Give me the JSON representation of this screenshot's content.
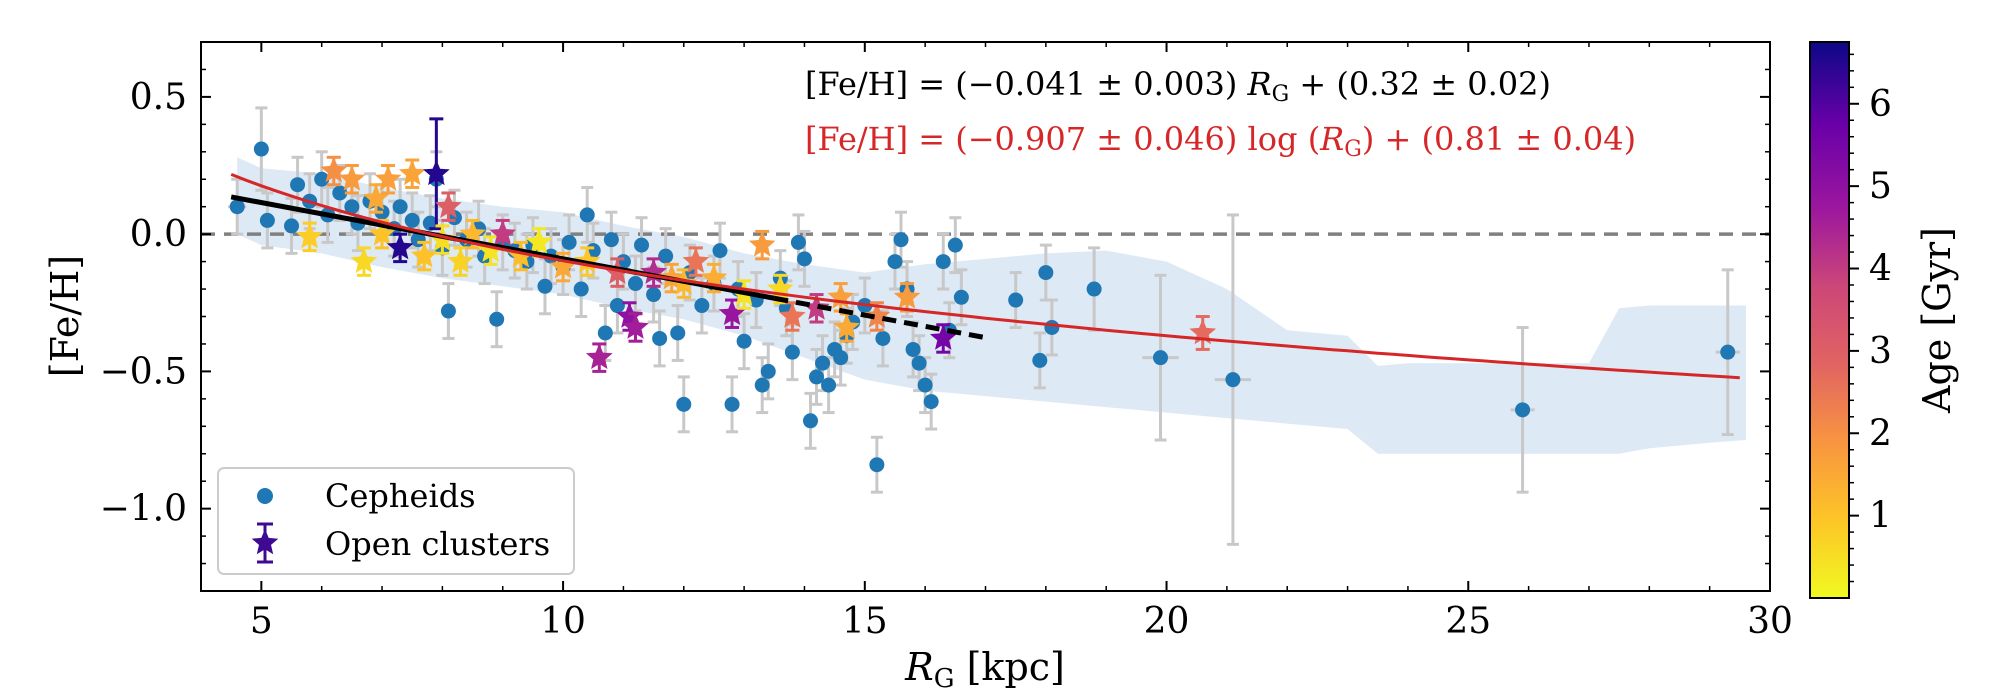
{
  "chart_data": {
    "type": "scatter",
    "xlabel": {
      "main": "R",
      "sub": "G",
      "unit": "[kpc]"
    },
    "ylabel": "[Fe/H]",
    "xlim": [
      4,
      30
    ],
    "ylim": [
      -1.3,
      0.7
    ],
    "xticks": [
      5,
      10,
      15,
      20,
      25,
      30
    ],
    "yticks": [
      0.5,
      0.0,
      -0.5,
      -1.0
    ],
    "xtick_labels": [
      "5",
      "10",
      "15",
      "20",
      "25",
      "30"
    ],
    "ytick_labels": [
      "0.5",
      "0.0",
      "−0.5",
      "−1.0"
    ],
    "reference_line": {
      "y": 0.0,
      "style": "dashed",
      "color": "#808080"
    },
    "colorbar": {
      "label": "Age [Gyr]",
      "range": [
        0,
        6.75
      ],
      "ticks": [
        1,
        2,
        3,
        4,
        5,
        6
      ],
      "tick_labels": [
        "1",
        "2",
        "3",
        "4",
        "5",
        "6"
      ],
      "colormap": "plasma_r"
    },
    "fits": [
      {
        "name": "linear",
        "equation": {
          "pre": "[Fe/H] = (−0.041 ± 0.003) ",
          "var": "R",
          "sub": "G",
          "post": " + (0.32 ± 0.02)"
        },
        "slope": -0.041,
        "intercept": 0.32,
        "x_solid": [
          4.5,
          13.5
        ],
        "x_dashed": [
          13.5,
          17.0
        ],
        "color": "#000000"
      },
      {
        "name": "log",
        "equation": {
          "pre": "[Fe/H] = (−0.907 ± 0.046) log (",
          "var": "R",
          "sub": "G",
          "post": ") + (0.81 ± 0.04)"
        },
        "a": -0.907,
        "b": 0.81,
        "x_range": [
          4.5,
          29.5
        ],
        "color": "#d62728"
      }
    ],
    "uncertainty_band": {
      "color": "#c6dbef",
      "x": [
        4.6,
        5,
        6,
        7,
        8,
        9,
        10,
        11,
        12,
        13,
        14,
        15,
        16,
        17,
        18,
        19,
        20,
        21,
        22,
        23,
        23.5,
        24,
        25,
        26,
        27,
        27.5,
        28,
        29,
        29.6
      ],
      "upper": [
        0.28,
        0.24,
        0.22,
        0.17,
        0.13,
        0.1,
        0.08,
        0.03,
        -0.01,
        -0.07,
        -0.11,
        -0.14,
        -0.11,
        -0.09,
        -0.07,
        -0.06,
        -0.1,
        -0.2,
        -0.35,
        -0.37,
        -0.48,
        -0.47,
        -0.47,
        -0.47,
        -0.47,
        -0.27,
        -0.26,
        -0.26,
        -0.26
      ],
      "lower": [
        0.0,
        -0.04,
        -0.07,
        -0.12,
        -0.16,
        -0.19,
        -0.22,
        -0.27,
        -0.31,
        -0.37,
        -0.45,
        -0.53,
        -0.57,
        -0.59,
        -0.61,
        -0.63,
        -0.65,
        -0.67,
        -0.69,
        -0.71,
        -0.8,
        -0.8,
        -0.8,
        -0.8,
        -0.8,
        -0.8,
        -0.78,
        -0.76,
        -0.75
      ]
    },
    "series": [
      {
        "name": "Cepheids",
        "marker": "circle",
        "color": "#1f77b4",
        "points": [
          [
            5.0,
            0.31,
            0.15,
            0.1
          ],
          [
            4.6,
            0.1,
            0.1,
            0.15
          ],
          [
            5.1,
            0.05,
            0.1,
            0.1
          ],
          [
            5.5,
            0.03,
            0.1,
            0.1
          ],
          [
            5.6,
            0.18,
            0.1,
            0.1
          ],
          [
            5.8,
            0.12,
            0.1,
            0.1
          ],
          [
            6.0,
            0.2,
            0.1,
            0.1
          ],
          [
            6.1,
            0.07,
            0.1,
            0.1
          ],
          [
            6.3,
            0.15,
            0.1,
            0.1
          ],
          [
            6.5,
            0.1,
            0.1,
            0.1
          ],
          [
            6.6,
            0.04,
            0.1,
            0.1
          ],
          [
            6.8,
            0.12,
            0.1,
            0.1
          ],
          [
            7.0,
            0.08,
            0.1,
            0.1
          ],
          [
            7.2,
            0.02,
            0.1,
            0.1
          ],
          [
            7.3,
            0.1,
            0.1,
            0.1
          ],
          [
            7.5,
            0.05,
            0.1,
            0.1
          ],
          [
            7.6,
            -0.02,
            0.1,
            0.1
          ],
          [
            7.8,
            0.04,
            0.1,
            0.1
          ],
          [
            7.9,
            0.2,
            0.1,
            0.1
          ],
          [
            8.0,
            -0.05,
            0.1,
            0.1
          ],
          [
            8.1,
            -0.28,
            0.1,
            0.1
          ],
          [
            8.2,
            0.06,
            0.1,
            0.1
          ],
          [
            8.4,
            -0.02,
            0.1,
            0.1
          ],
          [
            8.6,
            0.02,
            0.1,
            0.1
          ],
          [
            8.7,
            -0.08,
            0.1,
            0.1
          ],
          [
            8.9,
            -0.31,
            0.1,
            0.1
          ],
          [
            9.0,
            -0.03,
            0.1,
            0.1
          ],
          [
            9.2,
            -0.06,
            0.1,
            0.1
          ],
          [
            9.4,
            -0.1,
            0.1,
            0.1
          ],
          [
            9.5,
            -0.04,
            0.1,
            0.1
          ],
          [
            9.7,
            -0.19,
            0.1,
            0.1
          ],
          [
            9.8,
            -0.08,
            0.1,
            0.1
          ],
          [
            10.0,
            -0.12,
            0.1,
            0.1
          ],
          [
            10.1,
            -0.03,
            0.1,
            0.1
          ],
          [
            10.3,
            -0.2,
            0.1,
            0.1
          ],
          [
            10.4,
            0.07,
            0.1,
            0.1
          ],
          [
            10.5,
            -0.06,
            0.1,
            0.1
          ],
          [
            10.7,
            -0.36,
            0.1,
            0.1
          ],
          [
            10.8,
            -0.02,
            0.1,
            0.1
          ],
          [
            10.9,
            -0.26,
            0.1,
            0.1
          ],
          [
            11.0,
            -0.1,
            0.1,
            0.1
          ],
          [
            11.2,
            -0.18,
            0.1,
            0.1
          ],
          [
            11.3,
            -0.04,
            0.1,
            0.1
          ],
          [
            11.5,
            -0.22,
            0.1,
            0.1
          ],
          [
            11.6,
            -0.38,
            0.1,
            0.1
          ],
          [
            11.7,
            -0.08,
            0.1,
            0.1
          ],
          [
            11.9,
            -0.36,
            0.1,
            0.1
          ],
          [
            12.0,
            -0.62,
            0.1,
            0.1
          ],
          [
            12.1,
            -0.14,
            0.1,
            0.1
          ],
          [
            12.3,
            -0.26,
            0.1,
            0.1
          ],
          [
            12.5,
            -0.18,
            0.1,
            0.1
          ],
          [
            12.6,
            -0.06,
            0.1,
            0.1
          ],
          [
            12.8,
            -0.62,
            0.1,
            0.1
          ],
          [
            12.9,
            -0.2,
            0.1,
            0.1
          ],
          [
            13.0,
            -0.39,
            0.1,
            0.1
          ],
          [
            13.2,
            -0.24,
            0.1,
            0.1
          ],
          [
            13.3,
            -0.55,
            0.1,
            0.1
          ],
          [
            13.4,
            -0.5,
            0.1,
            0.1
          ],
          [
            13.6,
            -0.16,
            0.1,
            0.1
          ],
          [
            13.7,
            -0.27,
            0.1,
            0.1
          ],
          [
            13.8,
            -0.43,
            0.1,
            0.1
          ],
          [
            13.9,
            -0.03,
            0.1,
            0.1
          ],
          [
            14.0,
            -0.09,
            0.1,
            0.1
          ],
          [
            14.1,
            -0.68,
            0.1,
            0.1
          ],
          [
            14.2,
            -0.52,
            0.1,
            0.1
          ],
          [
            14.3,
            -0.47,
            0.1,
            0.1
          ],
          [
            14.4,
            -0.55,
            0.1,
            0.1
          ],
          [
            14.5,
            -0.42,
            0.1,
            0.1
          ],
          [
            14.6,
            -0.45,
            0.1,
            0.1
          ],
          [
            14.7,
            -0.37,
            0.1,
            0.1
          ],
          [
            14.8,
            -0.32,
            0.1,
            0.1
          ],
          [
            15.0,
            -0.26,
            0.1,
            0.1
          ],
          [
            15.2,
            -0.84,
            0.1,
            0.1
          ],
          [
            15.3,
            -0.38,
            0.1,
            0.1
          ],
          [
            15.5,
            -0.1,
            0.1,
            0.1
          ],
          [
            15.6,
            -0.02,
            0.1,
            0.1
          ],
          [
            15.7,
            -0.2,
            0.1,
            0.1
          ],
          [
            15.8,
            -0.42,
            0.1,
            0.1
          ],
          [
            15.9,
            -0.47,
            0.1,
            0.1
          ],
          [
            16.0,
            -0.55,
            0.1,
            0.1
          ],
          [
            16.1,
            -0.61,
            0.1,
            0.1
          ],
          [
            16.3,
            -0.1,
            0.1,
            0.1
          ],
          [
            16.4,
            -0.35,
            0.1,
            0.1
          ],
          [
            16.5,
            -0.04,
            0.1,
            0.1
          ],
          [
            16.6,
            -0.23,
            0.1,
            0.1
          ],
          [
            17.5,
            -0.24,
            0.1,
            0.1
          ],
          [
            17.9,
            -0.46,
            0.1,
            0.1
          ],
          [
            18.0,
            -0.14,
            0.1,
            0.1
          ],
          [
            18.1,
            -0.34,
            0.1,
            0.1
          ],
          [
            18.8,
            -0.2,
            0.15,
            0.1
          ],
          [
            19.9,
            -0.45,
            0.3,
            0.3
          ],
          [
            21.1,
            -0.53,
            0.6,
            0.3
          ],
          [
            25.9,
            -0.64,
            0.3,
            0.2
          ],
          [
            29.3,
            -0.43,
            0.3,
            0.2
          ]
        ]
      },
      {
        "name": "Open clusters",
        "marker": "star",
        "points": [
          [
            5.8,
            -0.01,
            0.05,
            0.8
          ],
          [
            6.2,
            0.23,
            0.05,
            2.0
          ],
          [
            6.5,
            0.2,
            0.05,
            1.8
          ],
          [
            6.7,
            -0.1,
            0.05,
            0.6
          ],
          [
            6.9,
            0.13,
            0.05,
            1.5
          ],
          [
            7.0,
            0.0,
            0.05,
            1.0
          ],
          [
            7.1,
            0.2,
            0.05,
            1.7
          ],
          [
            7.3,
            -0.05,
            0.05,
            6.5
          ],
          [
            7.5,
            0.22,
            0.05,
            1.6
          ],
          [
            7.7,
            -0.08,
            0.05,
            1.0
          ],
          [
            7.9,
            0.22,
            0.2,
            6.5
          ],
          [
            8.0,
            -0.02,
            0.05,
            0.5
          ],
          [
            8.1,
            0.1,
            0.05,
            3.0
          ],
          [
            8.3,
            -0.1,
            0.05,
            0.7
          ],
          [
            8.5,
            0.0,
            0.05,
            1.2
          ],
          [
            8.8,
            -0.06,
            0.05,
            0.4
          ],
          [
            9.0,
            0.0,
            0.05,
            4.0
          ],
          [
            9.3,
            -0.08,
            0.05,
            1.1
          ],
          [
            9.6,
            -0.03,
            0.05,
            0.3
          ],
          [
            10.0,
            -0.12,
            0.05,
            1.5
          ],
          [
            10.4,
            -0.1,
            0.05,
            0.9
          ],
          [
            10.6,
            -0.45,
            0.05,
            4.5
          ],
          [
            10.9,
            -0.14,
            0.05,
            3.0
          ],
          [
            11.1,
            -0.3,
            0.05,
            5.0
          ],
          [
            11.2,
            -0.34,
            0.05,
            4.6
          ],
          [
            11.5,
            -0.14,
            0.05,
            4.3
          ],
          [
            11.8,
            -0.16,
            0.05,
            1.6
          ],
          [
            12.0,
            -0.18,
            0.05,
            1.2
          ],
          [
            12.2,
            -0.1,
            0.05,
            2.5
          ],
          [
            12.5,
            -0.16,
            0.05,
            1.4
          ],
          [
            12.8,
            -0.29,
            0.05,
            4.8
          ],
          [
            13.0,
            -0.22,
            0.05,
            0.4
          ],
          [
            13.3,
            -0.04,
            0.05,
            1.8
          ],
          [
            13.6,
            -0.2,
            0.05,
            0.6
          ],
          [
            13.8,
            -0.3,
            0.05,
            2.5
          ],
          [
            14.2,
            -0.27,
            0.05,
            4.0
          ],
          [
            14.6,
            -0.23,
            0.05,
            1.7
          ],
          [
            14.7,
            -0.34,
            0.05,
            1.5
          ],
          [
            15.2,
            -0.3,
            0.05,
            2.2
          ],
          [
            15.7,
            -0.23,
            0.05,
            1.8
          ],
          [
            16.3,
            -0.38,
            0.05,
            5.5
          ],
          [
            20.6,
            -0.36,
            0.06,
            2.7
          ]
        ]
      }
    ],
    "legend": {
      "location": "lower-left",
      "entries": [
        {
          "label": "Cepheids",
          "marker": "circle"
        },
        {
          "label": "Open clusters",
          "marker": "star-errorbar"
        }
      ]
    }
  }
}
